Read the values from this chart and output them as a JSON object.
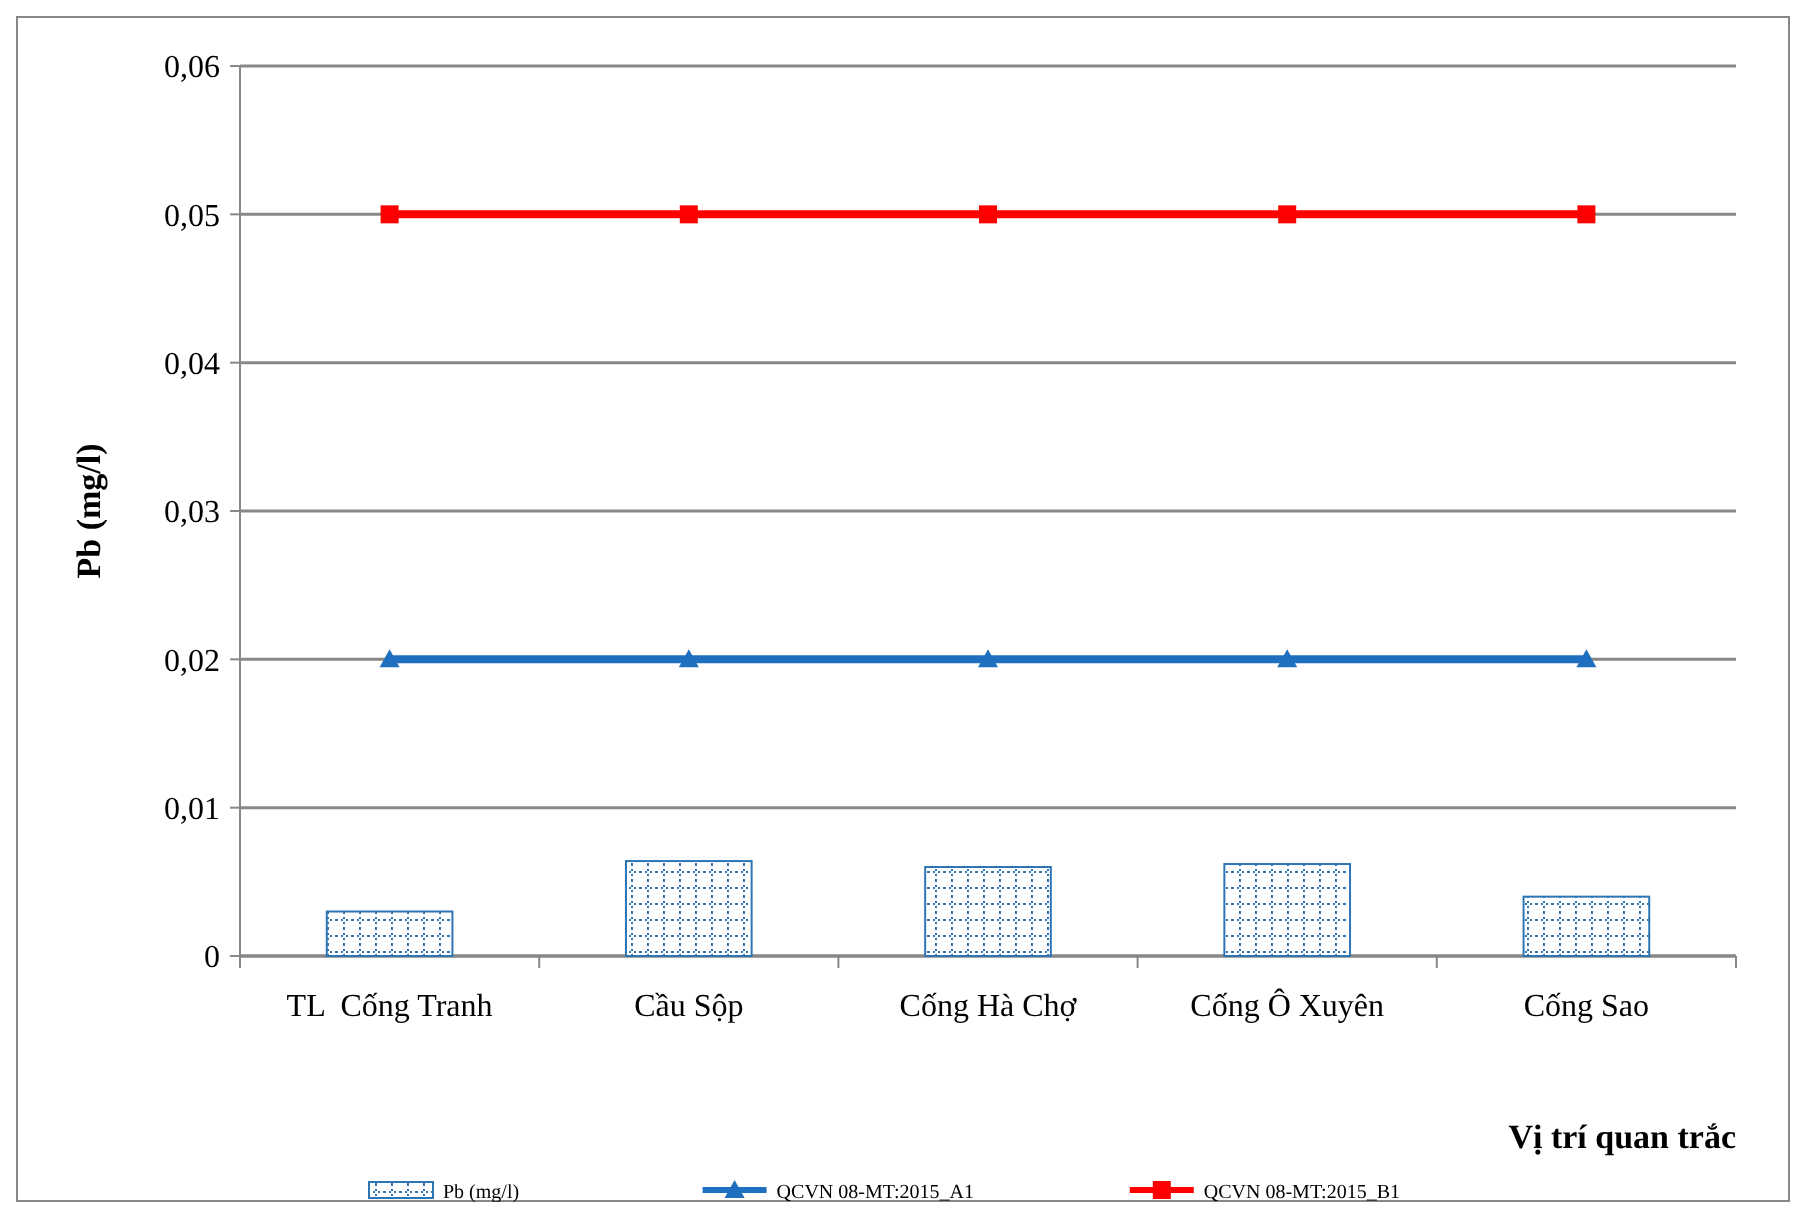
{
  "chart_data": {
    "type": "bar",
    "xlabel": "Vị trí quan trắc",
    "ylabel": "Pb (mg/l)",
    "categories": [
      "TL  Cống Tranh",
      "Cầu Sộp",
      "Cống Hà Chợ",
      "Cống Ô Xuyên",
      "Cống Sao"
    ],
    "series": [
      {
        "name": "Pb (mg/l)",
        "color": "#2e75b6",
        "values": [
          0.003,
          0.0064,
          0.006,
          0.0062,
          0.004
        ]
      },
      {
        "name": "QCVN 08-MT:2015_A1",
        "type": "line",
        "marker": "triangle",
        "color": "#1f6fc0",
        "values": [
          0.02,
          0.02,
          0.02,
          0.02,
          0.02
        ]
      },
      {
        "name": "QCVN 08-MT:2015_B1",
        "type": "line",
        "marker": "square",
        "color": "#ff0000",
        "values": [
          0.05,
          0.05,
          0.05,
          0.05,
          0.05
        ]
      }
    ],
    "ylim": [
      0,
      0.06
    ],
    "yticks": [
      0,
      {
        "value": 0.01,
        "label": "0,01"
      },
      {
        "value": 0.02,
        "label": "0,02"
      },
      {
        "value": 0.03,
        "label": "0,03"
      },
      {
        "value": 0.04,
        "label": "0,04"
      },
      {
        "value": 0.05,
        "label": "0,05"
      },
      {
        "value": 0.06,
        "label": "0,06"
      }
    ],
    "grid": "y",
    "legend": "bottom"
  }
}
